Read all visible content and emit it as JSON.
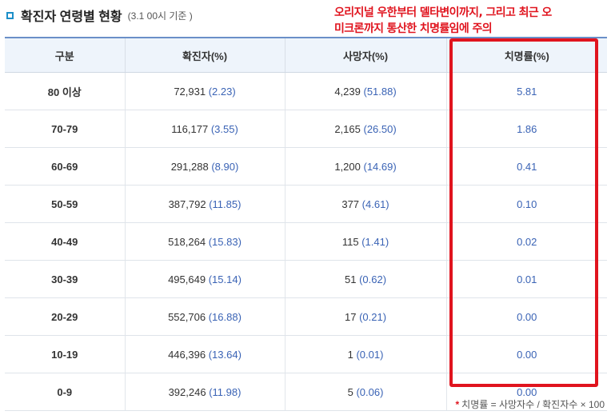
{
  "header": {
    "title": "확진자 연령별 현황",
    "subtitle": "(3.1 00시 기준 )"
  },
  "annotation": {
    "line1": "오리지널 우한부터 델타변이까지, 그리고 최근 오",
    "line2": "미크론까지 통산한 치명률임에 주의"
  },
  "table": {
    "columns": [
      "구분",
      "확진자(%)",
      "사망자(%)",
      "치명률(%)"
    ],
    "rows": [
      {
        "age": "80 이상",
        "cases": "72,931",
        "cases_pct": "(2.23)",
        "deaths": "4,239",
        "deaths_pct": "(51.88)",
        "cfr": "5.81"
      },
      {
        "age": "70-79",
        "cases": "116,177",
        "cases_pct": "(3.55)",
        "deaths": "2,165",
        "deaths_pct": "(26.50)",
        "cfr": "1.86"
      },
      {
        "age": "60-69",
        "cases": "291,288",
        "cases_pct": "(8.90)",
        "deaths": "1,200",
        "deaths_pct": "(14.69)",
        "cfr": "0.41"
      },
      {
        "age": "50-59",
        "cases": "387,792",
        "cases_pct": "(11.85)",
        "deaths": "377",
        "deaths_pct": "(4.61)",
        "cfr": "0.10"
      },
      {
        "age": "40-49",
        "cases": "518,264",
        "cases_pct": "(15.83)",
        "deaths": "115",
        "deaths_pct": "(1.41)",
        "cfr": "0.02"
      },
      {
        "age": "30-39",
        "cases": "495,649",
        "cases_pct": "(15.14)",
        "deaths": "51",
        "deaths_pct": "(0.62)",
        "cfr": "0.01"
      },
      {
        "age": "20-29",
        "cases": "552,706",
        "cases_pct": "(16.88)",
        "deaths": "17",
        "deaths_pct": "(0.21)",
        "cfr": "0.00"
      },
      {
        "age": "10-19",
        "cases": "446,396",
        "cases_pct": "(13.64)",
        "deaths": "1",
        "deaths_pct": "(0.01)",
        "cfr": "0.00"
      },
      {
        "age": "0-9",
        "cases": "392,246",
        "cases_pct": "(11.98)",
        "deaths": "5",
        "deaths_pct": "(0.06)",
        "cfr": "0.00"
      }
    ]
  },
  "footnote": {
    "star": "*",
    "text": "치명률 = 사망자수 / 확진자수 × 100"
  },
  "colors": {
    "accent": "#1c8fc9",
    "annotation": "#e0141e",
    "percent": "#3a63b5"
  }
}
